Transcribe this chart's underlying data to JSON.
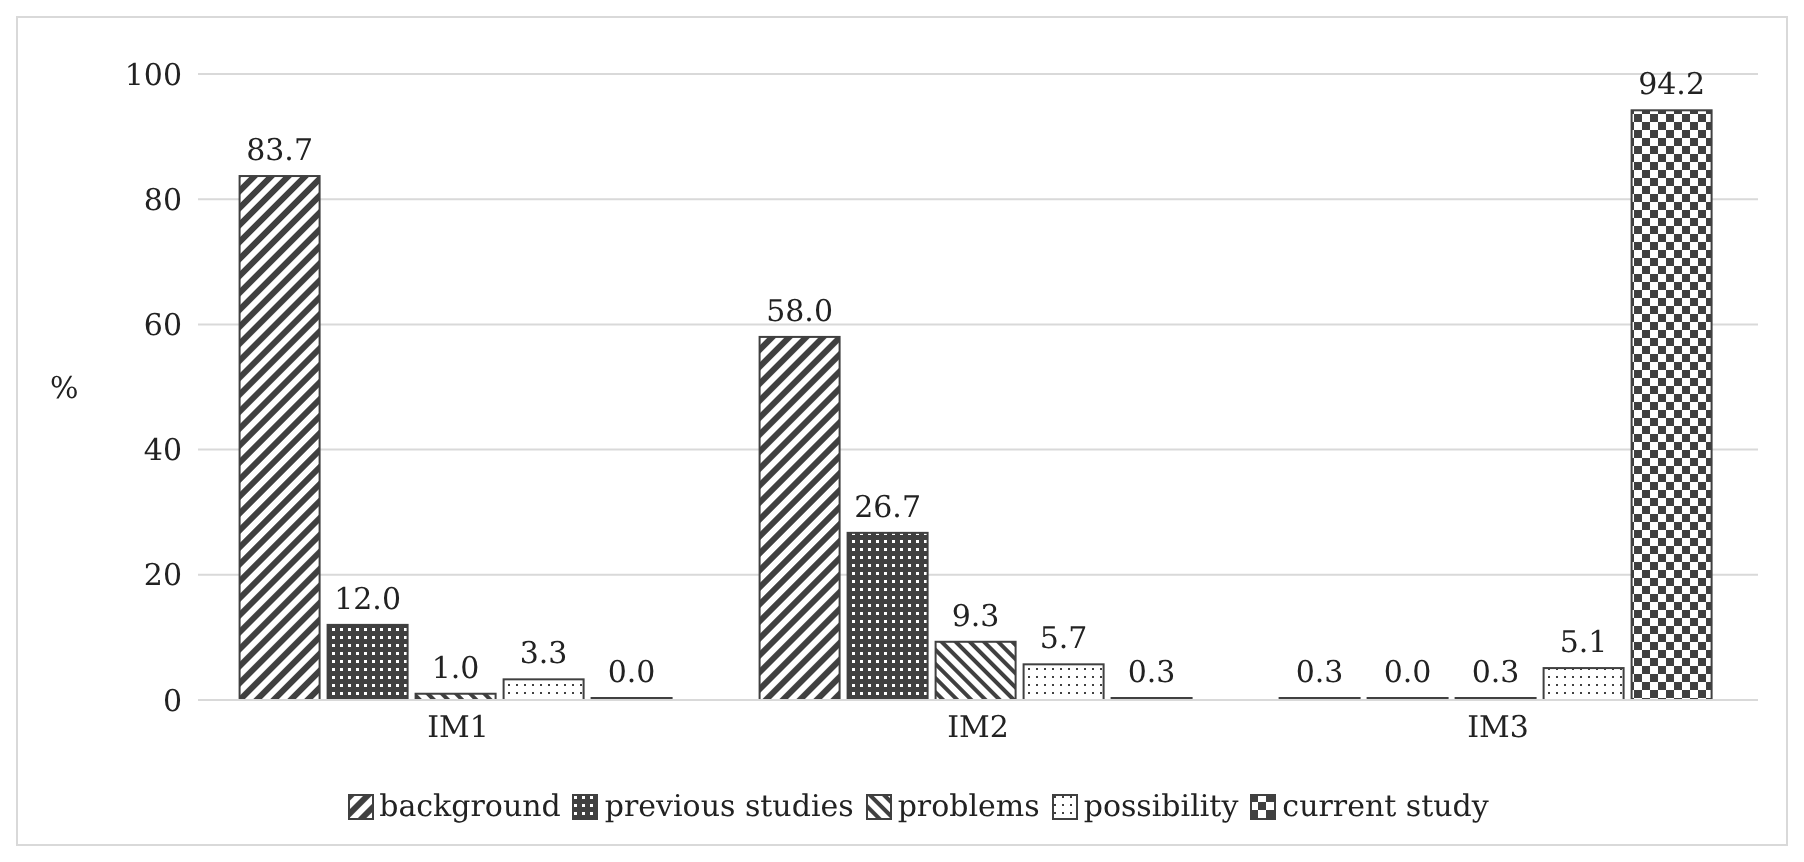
{
  "chart_data": {
    "type": "bar",
    "ylabel": "%",
    "categories": [
      "IM1",
      "IM2",
      "IM3"
    ],
    "series": [
      {
        "name": "background",
        "color": "#404040",
        "values": [
          83.7,
          58.0,
          0.3
        ],
        "value_labels": [
          "83.7",
          "58.0",
          "0.3"
        ]
      },
      {
        "name": "previous studies",
        "color": "#404040",
        "values": [
          12.0,
          26.7,
          0.0
        ],
        "value_labels": [
          "12.0",
          "26.7",
          "0.0"
        ]
      },
      {
        "name": "problems",
        "color": "#404040",
        "values": [
          1.0,
          9.3,
          0.3
        ],
        "value_labels": [
          "1.0",
          "9.3",
          "0.3"
        ]
      },
      {
        "name": "possibility",
        "color": "#404040",
        "values": [
          3.3,
          5.7,
          5.1
        ],
        "value_labels": [
          "3.3",
          "5.7",
          "5.1"
        ]
      },
      {
        "name": "current study",
        "color": "#404040",
        "values": [
          0.0,
          0.3,
          94.2
        ],
        "value_labels": [
          "0.0",
          "0.3",
          "94.2"
        ]
      }
    ],
    "ylim": [
      0,
      100
    ],
    "yticks": [
      0,
      20,
      40,
      60,
      80,
      100
    ],
    "grid": "y",
    "legend": "bottom"
  }
}
